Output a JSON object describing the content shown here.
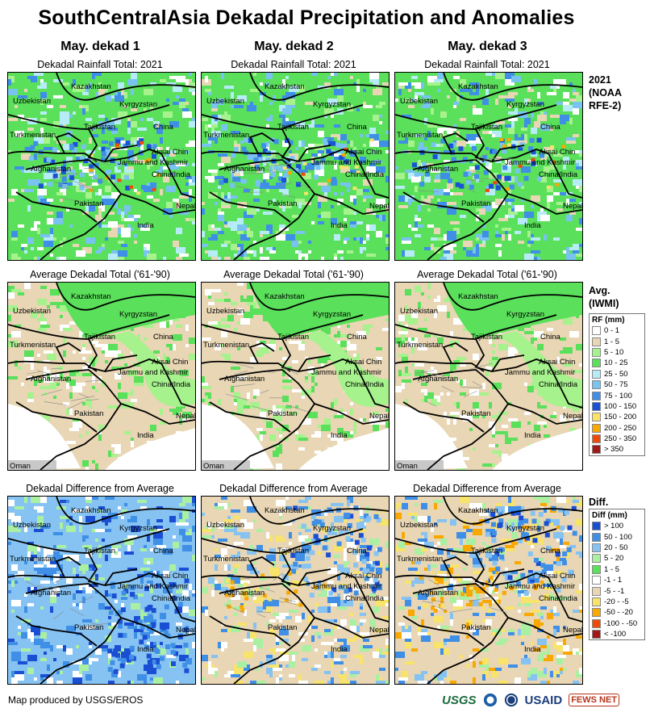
{
  "title": "SouthCentralAsia Dekadal Precipitation and Anomalies",
  "columns": [
    "May. dekad 1",
    "May. dekad 2",
    "May. dekad 3"
  ],
  "rows": [
    {
      "map_title": "Dekadal Rainfall Total: 2021",
      "side_label": [
        "2021",
        "(NOAA",
        "RFE-2)"
      ]
    },
    {
      "map_title": "Average Dekadal Total ('61-'90)",
      "side_label": [
        "Avg.",
        "(IWMI)"
      ]
    },
    {
      "map_title": "Dekadal Difference from Average",
      "side_label": [
        "Diff."
      ]
    }
  ],
  "place_labels": {
    "kazakhstan": "Kazakhstan",
    "uzbekistan": "Uzbekistan",
    "kyrgyzstan": "Kyrgyzstan",
    "turkmenistan": "Turkmenistan",
    "tajikistan": "Tajikistan",
    "china": "China",
    "aksai_chin": "Aksai Chin",
    "jammu": "Jammu and Kashmir",
    "china_india": "China/India",
    "afghanistan": "Afghanistan",
    "pakistan": "Pakistan",
    "nepal": "Nepal",
    "india": "India",
    "oman": "Oman"
  },
  "legend_rf": {
    "title": "RF (mm)",
    "items": [
      {
        "label": "0 - 1",
        "color": "#ffffff"
      },
      {
        "label": "1 - 5",
        "color": "#e8d6b4"
      },
      {
        "label": "5 - 10",
        "color": "#a6f28c"
      },
      {
        "label": "10 - 25",
        "color": "#5ae05a"
      },
      {
        "label": "25 - 50",
        "color": "#b6ecf6"
      },
      {
        "label": "50 - 75",
        "color": "#79c3f0"
      },
      {
        "label": "75 - 100",
        "color": "#3f8fe6"
      },
      {
        "label": "100 - 150",
        "color": "#1a52d6"
      },
      {
        "label": "150 - 200",
        "color": "#f8e46a"
      },
      {
        "label": "200 - 250",
        "color": "#f8a800"
      },
      {
        "label": "250 - 350",
        "color": "#ee4a0a"
      },
      {
        "label": "> 350",
        "color": "#a01818"
      }
    ]
  },
  "legend_diff": {
    "title": "Diff (mm)",
    "items": [
      {
        "label": "> 100",
        "color": "#1a4fd4"
      },
      {
        "label": "50 - 100",
        "color": "#3f8fe6"
      },
      {
        "label": "20 - 50",
        "color": "#86c3f2"
      },
      {
        "label": "5 - 20",
        "color": "#aaf0a2"
      },
      {
        "label": "1 - 5",
        "color": "#5ae05a"
      },
      {
        "label": "-1 - 1",
        "color": "#ffffff"
      },
      {
        "label": "-5 - -1",
        "color": "#e8d6b4"
      },
      {
        "label": "-20 - -5",
        "color": "#f8e46a"
      },
      {
        "label": "-50 - -20",
        "color": "#f8a800"
      },
      {
        "label": "-100 - -50",
        "color": "#ee4a0a"
      },
      {
        "label": "< -100",
        "color": "#a01818"
      }
    ]
  },
  "footer": "Map produced by USGS/EROS",
  "logos": {
    "usgs": "USGS",
    "usaid": "USAID",
    "fews": "FEWS NET"
  }
}
